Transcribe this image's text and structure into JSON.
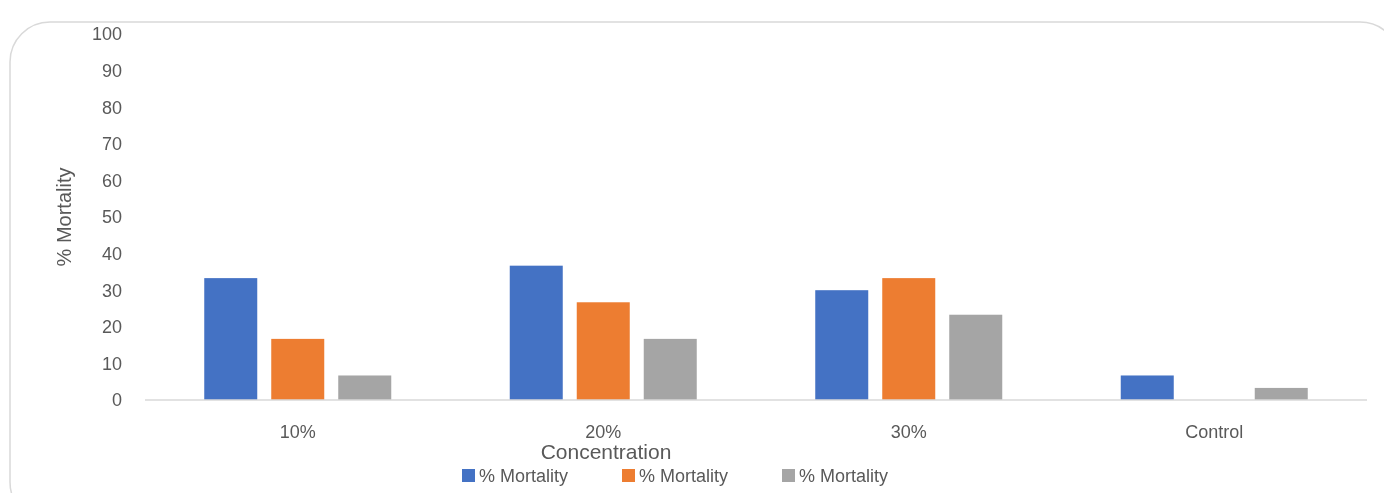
{
  "chart_data": {
    "type": "bar",
    "xlabel": "Concentration",
    "ylabel": "% Mortality",
    "categories": [
      "10%",
      "20%",
      "30%",
      "Control"
    ],
    "series": [
      {
        "name": "% Mortality",
        "color": "#4472c4",
        "values": [
          33.3,
          36.7,
          30,
          6.7
        ]
      },
      {
        "name": "% Mortality",
        "color": "#ed7d31",
        "values": [
          16.7,
          26.7,
          33.3,
          0
        ]
      },
      {
        "name": "% Mortality",
        "color": "#a5a5a5",
        "values": [
          6.7,
          16.7,
          23.3,
          3.3
        ]
      }
    ],
    "ylim": [
      0,
      100
    ],
    "yticks": [
      0,
      10,
      20,
      30,
      40,
      50,
      60,
      70,
      80,
      90,
      100
    ],
    "grid": false,
    "legend": "bottom"
  }
}
